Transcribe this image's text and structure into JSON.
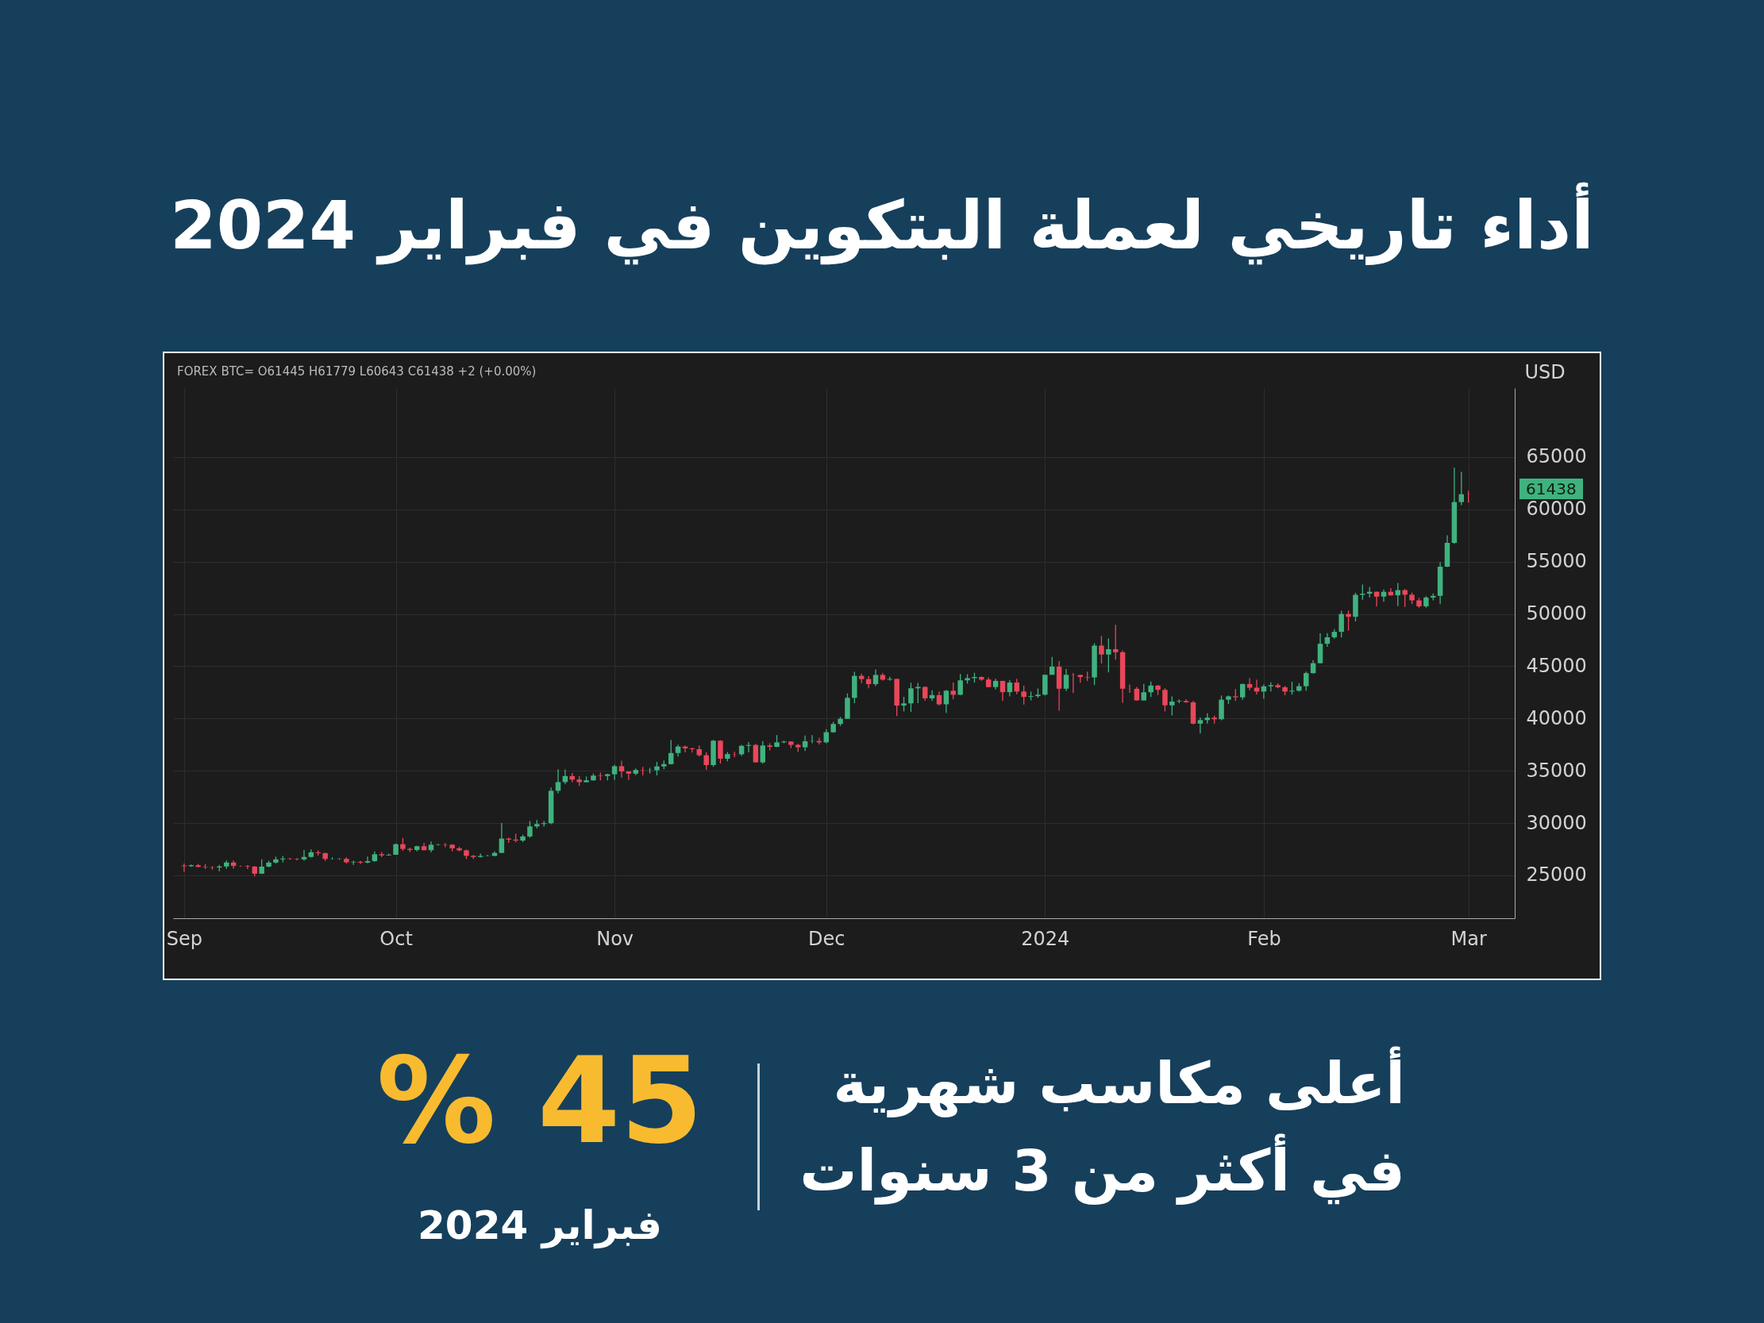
{
  "chart_data": {
    "type": "candlestick",
    "title": "أداء تاريخي لعملة البتكوين في فبراير 2024",
    "ylabel": "USD",
    "annotations": [
      "FOREX BTC= O61445 H61779 L60643 C61438 +2 (+0.00%)",
      "61438",
      "45 %",
      "فبراير 2024",
      "أعلى مكاسب شهرية",
      "في أكثر من 3 سنوات"
    ],
    "xlim": [
      "2023-08-31",
      "2024-03-07"
    ],
    "xticks": [
      {
        "value": "2023-09-01",
        "label": "Sep"
      },
      {
        "value": "2023-10-01",
        "label": "Oct"
      },
      {
        "value": "2023-11-01",
        "label": "Nov"
      },
      {
        "value": "2023-12-01",
        "label": "Dec"
      },
      {
        "value": "2024-01-01",
        "label": "2024"
      },
      {
        "value": "2024-02-01",
        "label": "Feb"
      },
      {
        "value": "2024-03-01",
        "label": "Mar"
      }
    ],
    "ylim": [
      20900,
      71600
    ],
    "yticks": [
      25000,
      30000,
      35000,
      40000,
      45000,
      50000,
      55000,
      60000,
      65000
    ],
    "grid": true,
    "x": [
      "2023-09-01",
      "2023-09-02",
      "2023-09-03",
      "2023-09-04",
      "2023-09-05",
      "2023-09-06",
      "2023-09-07",
      "2023-09-08",
      "2023-09-09",
      "2023-09-10",
      "2023-09-11",
      "2023-09-12",
      "2023-09-13",
      "2023-09-14",
      "2023-09-15",
      "2023-09-16",
      "2023-09-17",
      "2023-09-18",
      "2023-09-19",
      "2023-09-20",
      "2023-09-21",
      "2023-09-22",
      "2023-09-23",
      "2023-09-24",
      "2023-09-25",
      "2023-09-26",
      "2023-09-27",
      "2023-09-28",
      "2023-09-29",
      "2023-09-30",
      "2023-10-01",
      "2023-10-02",
      "2023-10-03",
      "2023-10-04",
      "2023-10-05",
      "2023-10-06",
      "2023-10-07",
      "2023-10-08",
      "2023-10-09",
      "2023-10-10",
      "2023-10-11",
      "2023-10-12",
      "2023-10-13",
      "2023-10-14",
      "2023-10-15",
      "2023-10-16",
      "2023-10-17",
      "2023-10-18",
      "2023-10-19",
      "2023-10-20",
      "2023-10-21",
      "2023-10-22",
      "2023-10-23",
      "2023-10-24",
      "2023-10-25",
      "2023-10-26",
      "2023-10-27",
      "2023-10-28",
      "2023-10-29",
      "2023-10-30",
      "2023-10-31",
      "2023-11-01",
      "2023-11-02",
      "2023-11-03",
      "2023-11-04",
      "2023-11-05",
      "2023-11-06",
      "2023-11-07",
      "2023-11-08",
      "2023-11-09",
      "2023-11-10",
      "2023-11-11",
      "2023-11-12",
      "2023-11-13",
      "2023-11-14",
      "2023-11-15",
      "2023-11-16",
      "2023-11-17",
      "2023-11-18",
      "2023-11-19",
      "2023-11-20",
      "2023-11-21",
      "2023-11-22",
      "2023-11-23",
      "2023-11-24",
      "2023-11-25",
      "2023-11-26",
      "2023-11-27",
      "2023-11-28",
      "2023-11-29",
      "2023-11-30",
      "2023-12-01",
      "2023-12-02",
      "2023-12-03",
      "2023-12-04",
      "2023-12-05",
      "2023-12-06",
      "2023-12-07",
      "2023-12-08",
      "2023-12-09",
      "2023-12-10",
      "2023-12-11",
      "2023-12-12",
      "2023-12-13",
      "2023-12-14",
      "2023-12-15",
      "2023-12-16",
      "2023-12-17",
      "2023-12-18",
      "2023-12-19",
      "2023-12-20",
      "2023-12-21",
      "2023-12-22",
      "2023-12-23",
      "2023-12-24",
      "2023-12-25",
      "2023-12-26",
      "2023-12-27",
      "2023-12-28",
      "2023-12-29",
      "2023-12-30",
      "2023-12-31",
      "2024-01-01",
      "2024-01-02",
      "2024-01-03",
      "2024-01-04",
      "2024-01-05",
      "2024-01-06",
      "2024-01-07",
      "2024-01-08",
      "2024-01-09",
      "2024-01-10",
      "2024-01-11",
      "2024-01-12",
      "2024-01-13",
      "2024-01-14",
      "2024-01-15",
      "2024-01-16",
      "2024-01-17",
      "2024-01-18",
      "2024-01-19",
      "2024-01-20",
      "2024-01-21",
      "2024-01-22",
      "2024-01-23",
      "2024-01-24",
      "2024-01-25",
      "2024-01-26",
      "2024-01-27",
      "2024-01-28",
      "2024-01-29",
      "2024-01-30",
      "2024-01-31",
      "2024-02-01",
      "2024-02-02",
      "2024-02-03",
      "2024-02-04",
      "2024-02-05",
      "2024-02-06",
      "2024-02-07",
      "2024-02-08",
      "2024-02-09",
      "2024-02-10",
      "2024-02-11",
      "2024-02-12",
      "2024-02-13",
      "2024-02-14",
      "2024-02-15",
      "2024-02-16",
      "2024-02-17",
      "2024-02-18",
      "2024-02-19",
      "2024-02-20",
      "2024-02-21",
      "2024-02-22",
      "2024-02-23",
      "2024-02-24",
      "2024-02-25",
      "2024-02-26",
      "2024-02-27",
      "2024-02-28",
      "2024-02-29",
      "2024-03-01"
    ],
    "ohlc": [
      [
        25940,
        26140,
        25340,
        25870
      ],
      [
        25870,
        26050,
        25810,
        25970
      ],
      [
        25970,
        26100,
        25770,
        25820
      ],
      [
        25820,
        26080,
        25620,
        25780
      ],
      [
        25780,
        25860,
        25550,
        25750
      ],
      [
        25750,
        26000,
        25400,
        25850
      ],
      [
        25850,
        26430,
        25630,
        26230
      ],
      [
        26230,
        26420,
        25650,
        25900
      ],
      [
        25900,
        25940,
        25810,
        25890
      ],
      [
        25890,
        25990,
        25600,
        25840
      ],
      [
        25840,
        25890,
        24900,
        25160
      ],
      [
        25160,
        26530,
        25130,
        25840
      ],
      [
        25840,
        26390,
        25770,
        26220
      ],
      [
        26220,
        26790,
        26140,
        26530
      ],
      [
        26530,
        26860,
        26250,
        26610
      ],
      [
        26610,
        26660,
        26500,
        26570
      ],
      [
        26570,
        26640,
        26440,
        26530
      ],
      [
        26530,
        27420,
        26410,
        26760
      ],
      [
        26760,
        27480,
        26700,
        27210
      ],
      [
        27210,
        27380,
        26900,
        27130
      ],
      [
        27130,
        27160,
        26380,
        26570
      ],
      [
        26570,
        26730,
        26510,
        26580
      ],
      [
        26580,
        26640,
        26500,
        26600
      ],
      [
        26580,
        26730,
        26140,
        26250
      ],
      [
        26250,
        26400,
        26000,
        26300
      ],
      [
        26300,
        26390,
        26100,
        26220
      ],
      [
        26220,
        26800,
        26150,
        26360
      ],
      [
        26360,
        27290,
        26310,
        27020
      ],
      [
        27020,
        27240,
        26740,
        26910
      ],
      [
        26910,
        27090,
        26890,
        26970
      ],
      [
        26970,
        28050,
        26960,
        27980
      ],
      [
        27980,
        28580,
        27330,
        27530
      ],
      [
        27530,
        27650,
        27220,
        27430
      ],
      [
        27430,
        27830,
        27300,
        27790
      ],
      [
        27790,
        28110,
        27380,
        27410
      ],
      [
        27410,
        28240,
        27200,
        27930
      ],
      [
        27930,
        28010,
        27860,
        27960
      ],
      [
        27960,
        28100,
        27690,
        27930
      ],
      [
        27930,
        27980,
        27290,
        27590
      ],
      [
        27590,
        27720,
        27300,
        27390
      ],
      [
        27390,
        27480,
        26560,
        26870
      ],
      [
        26870,
        26960,
        26580,
        26760
      ],
      [
        26760,
        27090,
        26700,
        26860
      ],
      [
        26860,
        26960,
        26820,
        26880
      ],
      [
        26860,
        27290,
        26830,
        27150
      ],
      [
        27150,
        30000,
        27130,
        28520
      ],
      [
        28520,
        28610,
        28110,
        28420
      ],
      [
        28420,
        28980,
        28170,
        28330
      ],
      [
        28330,
        28890,
        28190,
        28720
      ],
      [
        28720,
        30200,
        28600,
        29680
      ],
      [
        29680,
        30290,
        29490,
        29910
      ],
      [
        29910,
        30200,
        29670,
        29990
      ],
      [
        29990,
        33400,
        29890,
        33090
      ],
      [
        33090,
        35150,
        32840,
        33920
      ],
      [
        33920,
        35130,
        33730,
        34500
      ],
      [
        34500,
        34780,
        33900,
        34160
      ],
      [
        34160,
        34490,
        33550,
        33910
      ],
      [
        33910,
        34460,
        33880,
        34090
      ],
      [
        34090,
        34740,
        34050,
        34540
      ],
      [
        34540,
        34820,
        34080,
        34500
      ],
      [
        34500,
        34710,
        34090,
        34670
      ],
      [
        34670,
        35570,
        34120,
        35440
      ],
      [
        35440,
        35960,
        34360,
        34940
      ],
      [
        34940,
        34940,
        34120,
        34730
      ],
      [
        34730,
        35230,
        34580,
        35080
      ],
      [
        35080,
        35380,
        34570,
        35050
      ],
      [
        35050,
        35280,
        34750,
        35070
      ],
      [
        35050,
        35860,
        34560,
        35420
      ],
      [
        35420,
        35980,
        35150,
        35640
      ],
      [
        35640,
        37930,
        35610,
        36700
      ],
      [
        36700,
        37500,
        36360,
        37320
      ],
      [
        37320,
        37400,
        36760,
        37140
      ],
      [
        37140,
        37220,
        36750,
        37070
      ],
      [
        37070,
        37420,
        36360,
        36490
      ],
      [
        36490,
        36760,
        35100,
        35550
      ],
      [
        35550,
        37950,
        35380,
        37880
      ],
      [
        37880,
        37930,
        35690,
        36160
      ],
      [
        36160,
        36810,
        35900,
        36600
      ],
      [
        36600,
        36820,
        36300,
        36580
      ],
      [
        36580,
        37490,
        36420,
        37390
      ],
      [
        37390,
        37750,
        36760,
        37470
      ],
      [
        37470,
        37570,
        35770,
        35810
      ],
      [
        35810,
        37840,
        35690,
        37420
      ],
      [
        37420,
        37630,
        36950,
        37290
      ],
      [
        37290,
        38420,
        37260,
        37720
      ],
      [
        37720,
        37880,
        37640,
        37800
      ],
      [
        37800,
        37820,
        37180,
        37480
      ],
      [
        37480,
        37580,
        36800,
        37250
      ],
      [
        37250,
        38380,
        36900,
        37830
      ],
      [
        37830,
        38410,
        37630,
        37850
      ],
      [
        37850,
        38140,
        37530,
        37720
      ],
      [
        37720,
        38970,
        37640,
        38690
      ],
      [
        38690,
        39680,
        38650,
        39480
      ],
      [
        39480,
        40150,
        39290,
        39970
      ],
      [
        39970,
        42400,
        39970,
        41980
      ],
      [
        41980,
        44460,
        41460,
        44080
      ],
      [
        44080,
        44290,
        43380,
        43770
      ],
      [
        43770,
        44040,
        42890,
        43290
      ],
      [
        43290,
        44700,
        43100,
        44170
      ],
      [
        44170,
        44360,
        43610,
        43720
      ],
      [
        43720,
        44020,
        43620,
        43790
      ],
      [
        43790,
        43790,
        40240,
        41240
      ],
      [
        41240,
        42080,
        40680,
        41450
      ],
      [
        41450,
        43420,
        40620,
        42890
      ],
      [
        42890,
        43410,
        41470,
        43020
      ],
      [
        43020,
        43080,
        41700,
        41930
      ],
      [
        41930,
        42710,
        41700,
        42240
      ],
      [
        42240,
        42590,
        41250,
        41360
      ],
      [
        41360,
        42730,
        40540,
        42660
      ],
      [
        42660,
        43450,
        41850,
        42270
      ],
      [
        42270,
        44260,
        42230,
        43650
      ],
      [
        43650,
        44230,
        43330,
        43860
      ],
      [
        43860,
        44370,
        43430,
        43970
      ],
      [
        43970,
        44030,
        43610,
        43720
      ],
      [
        43720,
        43940,
        43010,
        43010
      ],
      [
        43010,
        43800,
        42770,
        43600
      ],
      [
        43600,
        43600,
        41680,
        42520
      ],
      [
        42520,
        43690,
        42120,
        43440
      ],
      [
        43440,
        43800,
        42330,
        42580
      ],
      [
        42580,
        43130,
        41330,
        42070
      ],
      [
        42070,
        42570,
        41740,
        42140
      ],
      [
        42140,
        42870,
        41980,
        42280
      ],
      [
        42280,
        44190,
        42190,
        44180
      ],
      [
        44180,
        45880,
        44180,
        44960
      ],
      [
        44960,
        45500,
        40750,
        42850
      ],
      [
        42850,
        44730,
        42630,
        44180
      ],
      [
        44180,
        44360,
        42440,
        44160
      ],
      [
        44160,
        44210,
        43420,
        43970
      ],
      [
        43970,
        44480,
        43590,
        43930
      ],
      [
        43930,
        47200,
        43200,
        46970
      ],
      [
        46970,
        47890,
        45260,
        46120
      ],
      [
        46120,
        47650,
        44400,
        46630
      ],
      [
        46630,
        48970,
        45630,
        46340
      ],
      [
        46340,
        46490,
        41500,
        42850
      ],
      [
        42850,
        43250,
        42450,
        42840
      ],
      [
        42840,
        43030,
        41720,
        41730
      ],
      [
        41730,
        43300,
        41730,
        42510
      ],
      [
        42510,
        43540,
        42060,
        43150
      ],
      [
        43150,
        43200,
        42240,
        42740
      ],
      [
        42740,
        42900,
        40680,
        41260
      ],
      [
        41260,
        42110,
        40300,
        41620
      ],
      [
        41620,
        41830,
        41460,
        41670
      ],
      [
        41670,
        41850,
        41500,
        41550
      ],
      [
        41550,
        41680,
        39440,
        39510
      ],
      [
        39510,
        40100,
        38560,
        39850
      ],
      [
        39850,
        40500,
        39520,
        40080
      ],
      [
        40080,
        40270,
        39520,
        39930
      ],
      [
        39930,
        42200,
        39830,
        41800
      ],
      [
        41800,
        42200,
        41400,
        42120
      ],
      [
        42120,
        42810,
        41680,
        42030
      ],
      [
        42030,
        43320,
        41800,
        43300
      ],
      [
        43300,
        43850,
        42700,
        42950
      ],
      [
        42950,
        43700,
        42300,
        42580
      ],
      [
        42580,
        43250,
        41890,
        43080
      ],
      [
        43080,
        43460,
        42590,
        43190
      ],
      [
        43190,
        43360,
        42900,
        42990
      ],
      [
        42990,
        43110,
        42230,
        42580
      ],
      [
        42580,
        43510,
        42280,
        42660
      ],
      [
        42660,
        43380,
        42570,
        43090
      ],
      [
        43090,
        44480,
        42640,
        44340
      ],
      [
        44340,
        45580,
        44300,
        45290
      ],
      [
        45290,
        48150,
        45270,
        47150
      ],
      [
        47150,
        48170,
        46860,
        47770
      ],
      [
        47770,
        48550,
        47620,
        48290
      ],
      [
        48290,
        50310,
        47750,
        50000
      ],
      [
        50000,
        50330,
        48400,
        49730
      ],
      [
        49730,
        52030,
        49290,
        51830
      ],
      [
        51830,
        52810,
        51350,
        51940
      ],
      [
        51940,
        52560,
        51590,
        52120
      ],
      [
        52120,
        52160,
        50700,
        51660
      ],
      [
        51660,
        52340,
        51170,
        52120
      ],
      [
        52120,
        52480,
        51730,
        51780
      ],
      [
        51780,
        52960,
        50740,
        52280
      ],
      [
        52280,
        52380,
        50670,
        51840
      ],
      [
        51840,
        52050,
        50950,
        51300
      ],
      [
        51300,
        51540,
        50590,
        50730
      ],
      [
        50730,
        51700,
        50600,
        51570
      ],
      [
        51570,
        51960,
        51300,
        51730
      ],
      [
        51730,
        54950,
        50940,
        54520
      ],
      [
        54520,
        57530,
        54480,
        56800
      ],
      [
        56800,
        64000,
        56700,
        60700
      ],
      [
        60700,
        63600,
        60400,
        61450
      ],
      [
        61445,
        61779,
        60643,
        61438
      ]
    ],
    "colors": [
      "#e8475a",
      "#3fb27f",
      "#e8475a",
      "#e8475a",
      "#e8475a",
      "#3fb27f",
      "#3fb27f",
      "#e8475a",
      "#e8475a",
      "#e8475a",
      "#e8475a",
      "#3fb27f",
      "#3fb27f",
      "#3fb27f",
      "#3fb27f",
      "#e8475a",
      "#e8475a",
      "#3fb27f",
      "#3fb27f",
      "#e8475a",
      "#e8475a",
      "#3fb27f",
      "#3fb27f",
      "#e8475a",
      "#3fb27f",
      "#e8475a",
      "#3fb27f",
      "#3fb27f",
      "#e8475a",
      "#3fb27f",
      "#3fb27f",
      "#e8475a",
      "#e8475a",
      "#3fb27f",
      "#e8475a",
      "#3fb27f",
      "#3fb27f",
      "#e8475a",
      "#e8475a",
      "#e8475a",
      "#e8475a",
      "#e8475a",
      "#3fb27f",
      "#3fb27f",
      "#3fb27f",
      "#3fb27f",
      "#e8475a",
      "#e8475a",
      "#3fb27f",
      "#3fb27f",
      "#3fb27f",
      "#3fb27f",
      "#3fb27f",
      "#3fb27f",
      "#3fb27f",
      "#e8475a",
      "#e8475a",
      "#3fb27f",
      "#3fb27f",
      "#e8475a",
      "#3fb27f",
      "#3fb27f",
      "#e8475a",
      "#e8475a",
      "#3fb27f",
      "#e8475a",
      "#3fb27f",
      "#3fb27f",
      "#3fb27f",
      "#3fb27f",
      "#3fb27f",
      "#e8475a",
      "#e8475a",
      "#e8475a",
      "#e8475a",
      "#3fb27f",
      "#e8475a",
      "#3fb27f",
      "#e8475a",
      "#3fb27f",
      "#3fb27f",
      "#e8475a",
      "#3fb27f",
      "#e8475a",
      "#3fb27f",
      "#3fb27f",
      "#e8475a",
      "#e8475a",
      "#3fb27f",
      "#3fb27f",
      "#e8475a",
      "#3fb27f",
      "#3fb27f",
      "#3fb27f",
      "#3fb27f",
      "#3fb27f",
      "#e8475a",
      "#e8475a",
      "#3fb27f",
      "#e8475a",
      "#3fb27f",
      "#e8475a",
      "#3fb27f",
      "#3fb27f",
      "#3fb27f",
      "#e8475a",
      "#3fb27f",
      "#e8475a",
      "#3fb27f",
      "#e8475a",
      "#3fb27f",
      "#3fb27f",
      "#3fb27f",
      "#e8475a",
      "#e8475a",
      "#3fb27f",
      "#e8475a",
      "#3fb27f",
      "#e8475a",
      "#e8475a",
      "#3fb27f",
      "#3fb27f",
      "#3fb27f",
      "#3fb27f",
      "#e8475a",
      "#3fb27f",
      "#e8475a",
      "#e8475a",
      "#e8475a",
      "#3fb27f",
      "#e8475a",
      "#3fb27f",
      "#e8475a",
      "#e8475a",
      "#e8475a",
      "#e8475a",
      "#3fb27f",
      "#3fb27f",
      "#e8475a",
      "#e8475a",
      "#3fb27f",
      "#3fb27f",
      "#e8475a",
      "#e8475a",
      "#3fb27f",
      "#3fb27f",
      "#e8475a",
      "#3fb27f",
      "#3fb27f",
      "#e8475a",
      "#3fb27f",
      "#e8475a",
      "#e8475a",
      "#3fb27f",
      "#3fb27f",
      "#e8475a",
      "#e8475a",
      "#3fb27f",
      "#3fb27f",
      "#3fb27f",
      "#3fb27f",
      "#3fb27f",
      "#3fb27f",
      "#3fb27f",
      "#3fb27f",
      "#e8475a",
      "#3fb27f",
      "#3fb27f",
      "#3fb27f",
      "#e8475a",
      "#3fb27f",
      "#e8475a",
      "#3fb27f",
      "#e8475a",
      "#e8475a",
      "#e8475a",
      "#3fb27f",
      "#3fb27f",
      "#3fb27f",
      "#3fb27f",
      "#3fb27f",
      "#3fb27f",
      "#e8475a"
    ]
  }
}
